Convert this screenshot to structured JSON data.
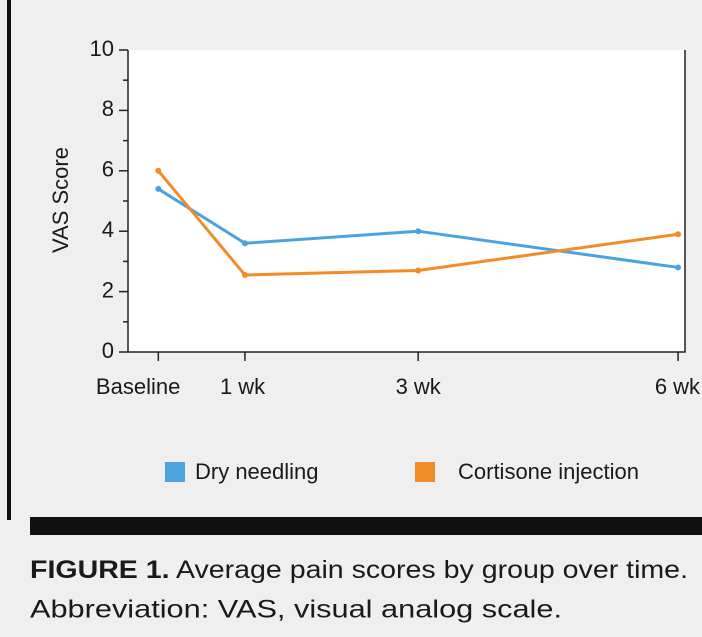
{
  "chart_data": {
    "type": "line",
    "ylabel": "VAS Score",
    "x": [
      0,
      1,
      3,
      6
    ],
    "xlim": [
      -0.35,
      6.08
    ],
    "xticks": [
      {
        "value": 0,
        "label": "Baseline"
      },
      {
        "value": 1,
        "label": "1 wk"
      },
      {
        "value": 3,
        "label": "3 wk"
      },
      {
        "value": 6,
        "label": "6 wk"
      }
    ],
    "ylim": [
      0,
      10
    ],
    "yticks": [
      0,
      2,
      4,
      6,
      8,
      10
    ],
    "yminorticks": [
      1,
      3,
      5,
      7,
      9
    ],
    "legend": "bottom",
    "series": [
      {
        "name": "Dry needling",
        "color": "#4aa3df",
        "values": [
          5.4,
          3.6,
          4.0,
          2.8
        ]
      },
      {
        "name": "Cortisone injection",
        "color": "#f28c28",
        "values": [
          6.0,
          2.55,
          2.7,
          3.9
        ]
      }
    ]
  },
  "caption": {
    "label": "FIGURE 1.",
    "text": "Average pain scores by group over time.",
    "note": "Abbreviation: VAS, visual analog scale."
  }
}
